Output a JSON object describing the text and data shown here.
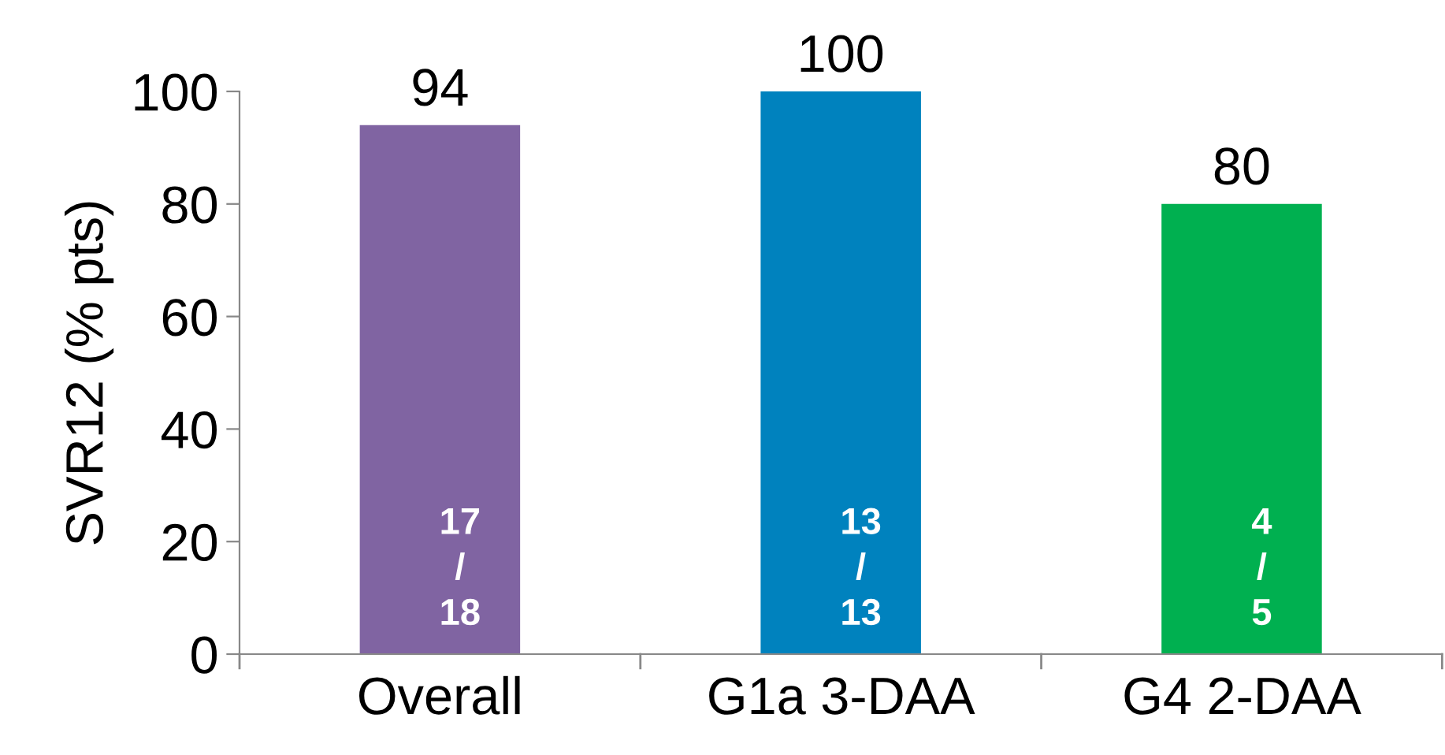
{
  "chart_data": {
    "type": "bar",
    "ylabel": "SVR12 (% pts)",
    "categories": [
      "Overall",
      "G1a 3-DAA",
      "G4 2-DAA"
    ],
    "values": [
      94,
      100,
      80
    ],
    "colors": [
      "#8064a2",
      "#0082be",
      "#00b050"
    ],
    "ylim": [
      0,
      100
    ],
    "yticks": [
      0,
      20,
      40,
      60,
      80,
      100
    ],
    "grid": false,
    "data_labels": true,
    "annotations": [
      "17\n/\n18",
      "13\n/\n13",
      "4\n/\n5"
    ]
  }
}
